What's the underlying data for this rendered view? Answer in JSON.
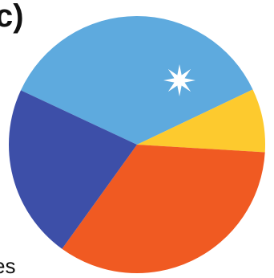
{
  "panel": {
    "label": "c)"
  },
  "footer": {
    "text": "es"
  },
  "marker": {
    "icon": "star-burst-icon",
    "color": "#ffffff"
  },
  "chart_data": {
    "type": "pie",
    "title": "",
    "start_angle_deg": 155,
    "direction": "clockwise",
    "values": [
      36,
      8,
      34,
      22
    ],
    "colors": [
      "#5eaade",
      "#fdca2e",
      "#f05a22",
      "#3d4fa8"
    ],
    "legend": "none"
  }
}
